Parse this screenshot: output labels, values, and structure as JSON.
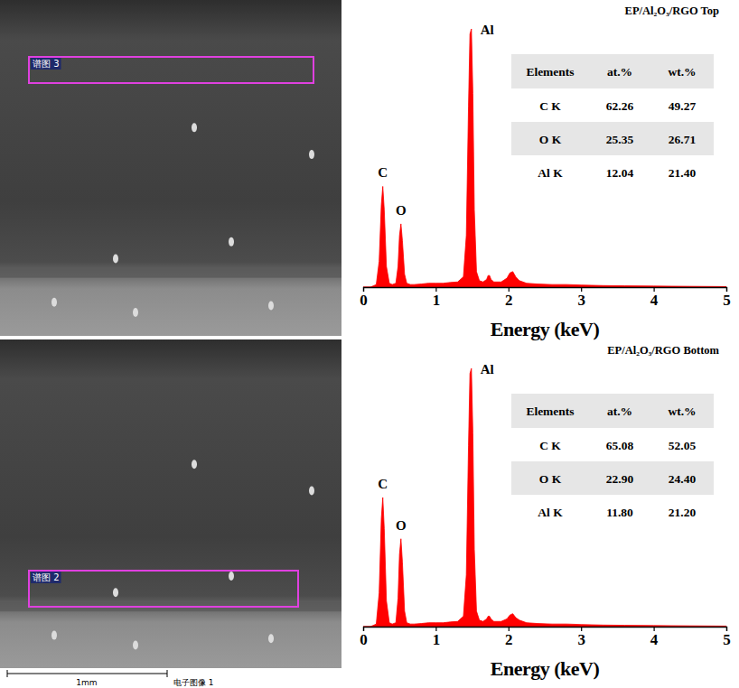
{
  "chart_data": [
    {
      "type": "area",
      "title": "EP/Al₂O₃/RGO Top",
      "x_label": "Energy (keV)",
      "x": [
        0,
        0.1,
        0.18,
        0.22,
        0.25,
        0.27,
        0.29,
        0.32,
        0.36,
        0.4,
        0.45,
        0.48,
        0.5,
        0.52,
        0.54,
        0.57,
        0.6,
        0.65,
        0.7,
        0.8,
        0.9,
        1.0,
        1.1,
        1.2,
        1.3,
        1.38,
        1.42,
        1.45,
        1.47,
        1.49,
        1.51,
        1.53,
        1.56,
        1.6,
        1.65,
        1.7,
        1.72,
        1.74,
        1.76,
        1.8,
        1.9,
        1.98,
        2.02,
        2.06,
        2.1,
        2.15,
        2.25,
        2.4,
        2.6,
        2.8,
        3.0,
        3.3,
        3.6,
        4.0,
        4.5,
        5.0
      ],
      "values": [
        0,
        0,
        1,
        10,
        32,
        39,
        30,
        8,
        1.5,
        1,
        1.5,
        8,
        20,
        24.5,
        18,
        5,
        1.5,
        1,
        1,
        1.2,
        1.5,
        1.5,
        1.5,
        1.8,
        2,
        4,
        20,
        70,
        98,
        100,
        75,
        30,
        6,
        2.5,
        2,
        3,
        4.5,
        4.5,
        3,
        2,
        2,
        3.5,
        5.5,
        6,
        4,
        2.5,
        1.5,
        1.2,
        1,
        1,
        0.8,
        0.6,
        0.5,
        0.4,
        0.3,
        0.2
      ],
      "color": "#ff0000",
      "xlim": [
        0,
        5
      ],
      "xticks": [
        0,
        1,
        2,
        3,
        4,
        5
      ],
      "ylim": [
        0,
        100
      ],
      "tick_labels": "x",
      "annotations": [
        {
          "text": "C",
          "x": 0.27,
          "y": 39
        },
        {
          "text": "O",
          "x": 0.52,
          "y": 24.5
        },
        {
          "text": "Al",
          "x": 1.49,
          "y": 100
        }
      ],
      "table": {
        "columns": [
          "Elements",
          "at.%",
          "wt.%"
        ],
        "rows": [
          [
            "C K",
            "62.26",
            "49.27"
          ],
          [
            "O K",
            "25.35",
            "26.71"
          ],
          [
            "Al K",
            "12.04",
            "21.40"
          ]
        ]
      }
    },
    {
      "type": "area",
      "title": "EP/Al₂O₃/RGO Bottom",
      "x_label": "Energy (keV)",
      "x": [
        0,
        0.1,
        0.18,
        0.22,
        0.25,
        0.27,
        0.29,
        0.32,
        0.36,
        0.4,
        0.45,
        0.48,
        0.5,
        0.52,
        0.54,
        0.57,
        0.6,
        0.65,
        0.7,
        0.8,
        0.9,
        1.0,
        1.1,
        1.2,
        1.3,
        1.38,
        1.42,
        1.45,
        1.47,
        1.49,
        1.51,
        1.53,
        1.56,
        1.6,
        1.65,
        1.7,
        1.72,
        1.74,
        1.76,
        1.8,
        1.9,
        1.98,
        2.02,
        2.06,
        2.1,
        2.15,
        2.25,
        2.4,
        2.6,
        2.8,
        3.0,
        3.3,
        3.6,
        4.0,
        4.5,
        5.0
      ],
      "values": [
        0,
        0,
        1,
        13,
        42,
        50,
        38,
        10,
        1.5,
        1,
        1.5,
        11,
        28,
        34,
        25,
        6,
        1.5,
        1,
        1,
        1.2,
        1.5,
        1.5,
        1.5,
        1.8,
        2,
        4,
        20,
        70,
        98,
        100,
        75,
        30,
        6,
        2.5,
        2,
        3,
        4,
        4,
        3,
        2,
        2,
        3,
        4.5,
        5,
        3.5,
        2.5,
        1.5,
        1.2,
        1,
        1,
        0.8,
        0.6,
        0.5,
        0.4,
        0.3,
        0.2
      ],
      "color": "#ff0000",
      "xlim": [
        0,
        5
      ],
      "xticks": [
        0,
        1,
        2,
        3,
        4,
        5
      ],
      "ylim": [
        0,
        100
      ],
      "tick_labels": "x",
      "annotations": [
        {
          "text": "C",
          "x": 0.27,
          "y": 50
        },
        {
          "text": "O",
          "x": 0.52,
          "y": 34
        },
        {
          "text": "Al",
          "x": 1.49,
          "y": 100
        }
      ],
      "table": {
        "columns": [
          "Elements",
          "at.%",
          "wt.%"
        ],
        "rows": [
          [
            "C K",
            "65.08",
            "52.05"
          ],
          [
            "O K",
            "22.90",
            "24.40"
          ],
          [
            "Al K",
            "11.80",
            "21.20"
          ]
        ]
      }
    }
  ],
  "images": [
    {
      "label": "谱图 3"
    },
    {
      "label": "谱图 2"
    }
  ],
  "scale_bar": "1mm",
  "image_caption": "电子图像 1"
}
